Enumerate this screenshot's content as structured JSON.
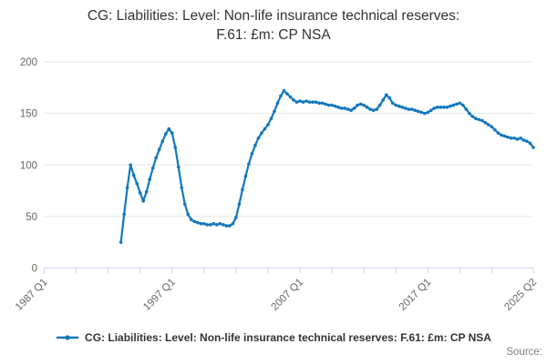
{
  "title": {
    "line1": "CG: Liabilities: Level: Non-life insurance technical reserves:",
    "line2": "F.61: £m: CP NSA",
    "full": "CG: Liabilities: Level: Non-life insurance technical reserves: F.61: £m: CP NSA"
  },
  "legend": {
    "label": "CG: Liabilities: Level: Non-life insurance technical reserves: F.61: £m: CP NSA"
  },
  "source_label": "Source:",
  "chart_data": {
    "type": "line",
    "title": "CG: Liabilities: Level: Non-life insurance technical reserves: F.61: £m: CP NSA",
    "xlabel": "",
    "ylabel": "",
    "ylim": [
      0,
      200
    ],
    "y_ticks": [
      0,
      50,
      100,
      150,
      200
    ],
    "grid": "horizontal",
    "legend_position": "bottom",
    "x_axis_start": "1987 Q1",
    "x_axis_end": "2025 Q2",
    "x_total_quarters": 153,
    "x_minor_tick_quarters": [
      0,
      10,
      20,
      30,
      40,
      50,
      60,
      70,
      80,
      90,
      100,
      110,
      120,
      130,
      140,
      153
    ],
    "x_labeled_ticks": [
      {
        "q": 0,
        "label": "1987 Q1"
      },
      {
        "q": 40,
        "label": "1997 Q1"
      },
      {
        "q": 80,
        "label": "2007 Q1"
      },
      {
        "q": 120,
        "label": "2017 Q1"
      },
      {
        "q": 153,
        "label": "2025 Q2"
      }
    ],
    "series": [
      {
        "name": "CG: Liabilities: Level: Non-life insurance technical reserves: F.61: £m: CP NSA",
        "unit": "£m",
        "frequency": "quarterly",
        "start_period": "1993 Q1",
        "end_period": "2025 Q2",
        "start_offset_quarters": 24,
        "values": [
          25,
          52,
          78,
          100,
          90,
          82,
          73,
          65,
          74,
          86,
          97,
          107,
          115,
          123,
          130,
          135,
          131,
          117,
          98,
          78,
          62,
          52,
          47,
          45,
          44,
          43,
          43,
          42,
          42,
          43,
          42,
          43,
          42,
          41,
          41,
          43,
          49,
          62,
          76,
          89,
          101,
          111,
          119,
          126,
          131,
          135,
          139,
          145,
          152,
          160,
          167,
          172,
          169,
          166,
          163,
          161,
          162,
          161,
          162,
          161,
          161,
          161,
          160,
          160,
          159,
          158,
          158,
          157,
          156,
          155,
          155,
          154,
          153,
          155,
          158,
          159,
          158,
          156,
          154,
          153,
          154,
          158,
          163,
          168,
          165,
          160,
          158,
          157,
          156,
          155,
          154,
          154,
          153,
          152,
          151,
          150,
          151,
          153,
          155,
          156,
          156,
          156,
          156,
          157,
          158,
          159,
          160,
          158,
          154,
          150,
          147,
          145,
          144,
          143,
          141,
          139,
          137,
          134,
          131,
          129,
          128,
          127,
          126,
          126,
          125,
          126,
          124,
          123,
          121,
          117
        ]
      }
    ],
    "colors": {
      "line": "#1377be",
      "grid": "#e6e6e6",
      "axis": "#ccd6eb",
      "tick_label": "#666666",
      "title_text": "#333333",
      "legend_text": "#333333",
      "source_text": "#808080"
    }
  }
}
